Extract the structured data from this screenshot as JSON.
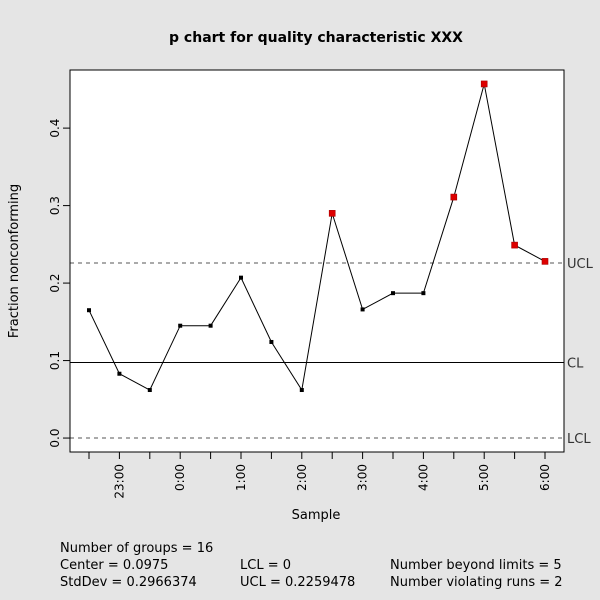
{
  "chart_data": {
    "type": "line",
    "title": "p chart for quality characteristic XXX",
    "xlabel": "Sample",
    "ylabel": "Fraction nonconforming",
    "x_tick_labels": [
      "23:00",
      "0:00",
      "1:00",
      "2:00",
      "3:00",
      "4:00",
      "5:00",
      "6:00"
    ],
    "y_tick_labels": [
      "0.0",
      "0.1",
      "0.2",
      "0.3",
      "0.4"
    ],
    "ylim": [
      -0.018,
      0.475
    ],
    "values": [
      0.165,
      0.083,
      0.062,
      0.145,
      0.145,
      0.207,
      0.124,
      0.062,
      0.29,
      0.166,
      0.187,
      0.187,
      0.311,
      0.457,
      0.249,
      0.228
    ],
    "violations": [
      false,
      false,
      false,
      false,
      false,
      false,
      false,
      false,
      true,
      false,
      false,
      false,
      true,
      true,
      true,
      true
    ],
    "center": 0.0975,
    "lcl": 0,
    "ucl": 0.2259478,
    "limit_labels": {
      "ucl": "UCL",
      "cl": "CL",
      "lcl": "LCL"
    },
    "grid": false,
    "colors": {
      "background": "#e5e5e5",
      "plot": "#ffffff",
      "point": "#000000",
      "violation": "#dd0000"
    }
  },
  "stats": {
    "groups": "Number of groups = 16",
    "center": "Center = 0.0975",
    "stddev": "StdDev = 0.2966374",
    "lcl": "LCL = 0",
    "ucl": "UCL = 0.2259478",
    "beyond": "Number beyond limits = 5",
    "runs": "Number violating runs = 2"
  }
}
